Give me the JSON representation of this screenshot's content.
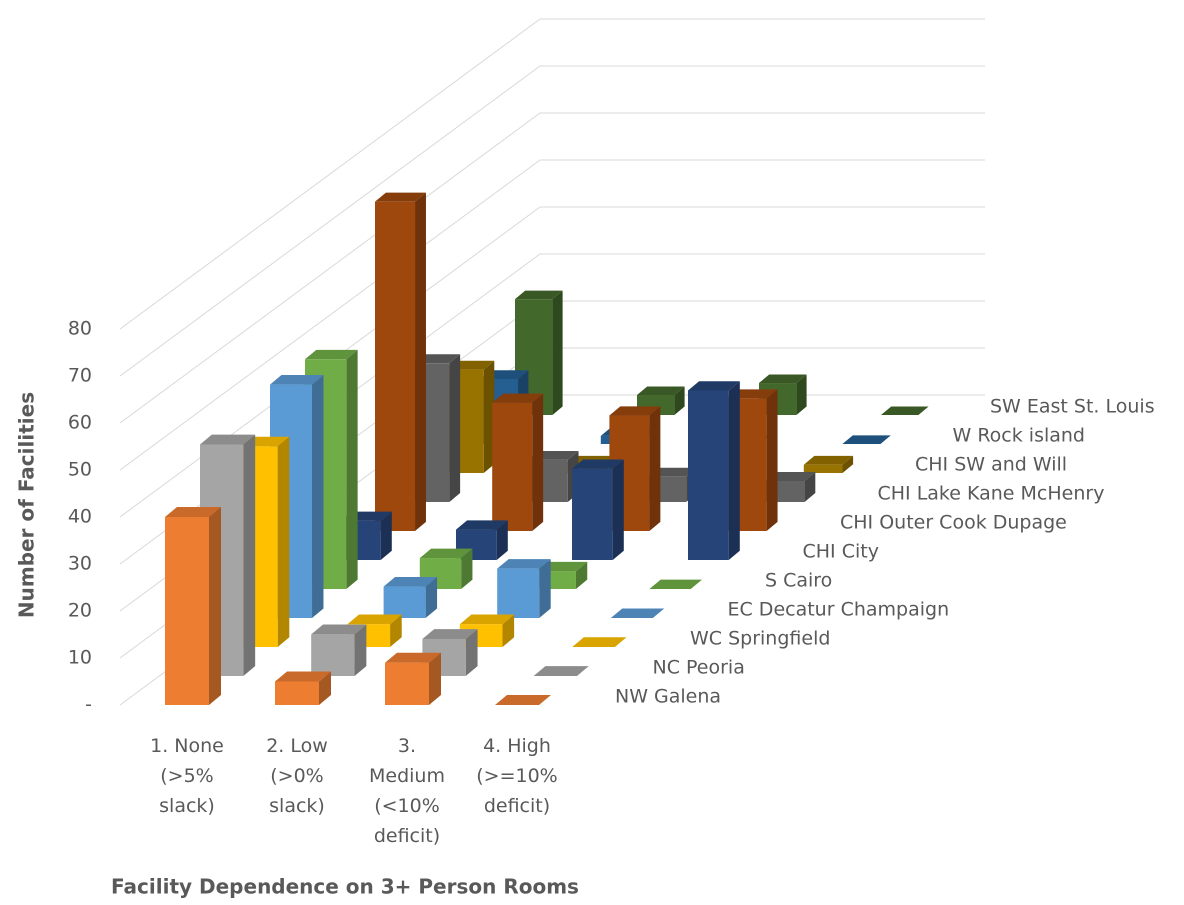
{
  "chart_data": {
    "type": "bar3d",
    "y_label": "Number of Facilities",
    "x_label": "Facility Dependence on 3+ Person Rooms",
    "categories": [
      "1. None\n(>5%\nslack)",
      "2. Low\n(>0%\nslack)",
      "3.\nMedium\n(<10%\ndeficit)",
      "4. High\n(>=10%\ndeficit)"
    ],
    "ylim": [
      0,
      80
    ],
    "yticks": [
      {
        "value": 0,
        "label": "-"
      },
      10,
      20,
      30,
      40,
      50,
      60,
      70,
      80
    ],
    "grid": true,
    "series": [
      {
        "name": "NW Galena",
        "color": "#ed7d31",
        "values": [
          40,
          5,
          9,
          0
        ]
      },
      {
        "name": "NC Peoria",
        "color": "#a5a5a5",
        "values": [
          50,
          9,
          8,
          0
        ]
      },
      {
        "name": "WC Springfield",
        "color": "#ffc000",
        "values": [
          44,
          5,
          5,
          0
        ]
      },
      {
        "name": "EC Decatur Champaign",
        "color": "#5b9bd5",
        "values": [
          52,
          7,
          11,
          0
        ]
      },
      {
        "name": "S Cairo",
        "color": "#70ad47",
        "values": [
          52,
          7,
          4,
          0
        ]
      },
      {
        "name": "CHI City",
        "color": "#264478",
        "values": [
          9,
          7,
          21,
          39
        ]
      },
      {
        "name": "CHI Outer Cook Dupage",
        "color": "#9e480e",
        "values": [
          77,
          30,
          27,
          31
        ]
      },
      {
        "name": "CHI Lake Kane McHenry",
        "color": "#636363",
        "values": [
          33,
          10,
          6,
          5
        ]
      },
      {
        "name": "CHI SW and Will",
        "color": "#997300",
        "values": [
          25,
          2,
          0,
          2
        ]
      },
      {
        "name": "W Rock island",
        "color": "#255e91",
        "values": [
          16,
          2,
          0,
          0
        ]
      },
      {
        "name": "SW East St. Louis",
        "color": "#43682b",
        "values": [
          29,
          5,
          8,
          0
        ]
      }
    ]
  }
}
